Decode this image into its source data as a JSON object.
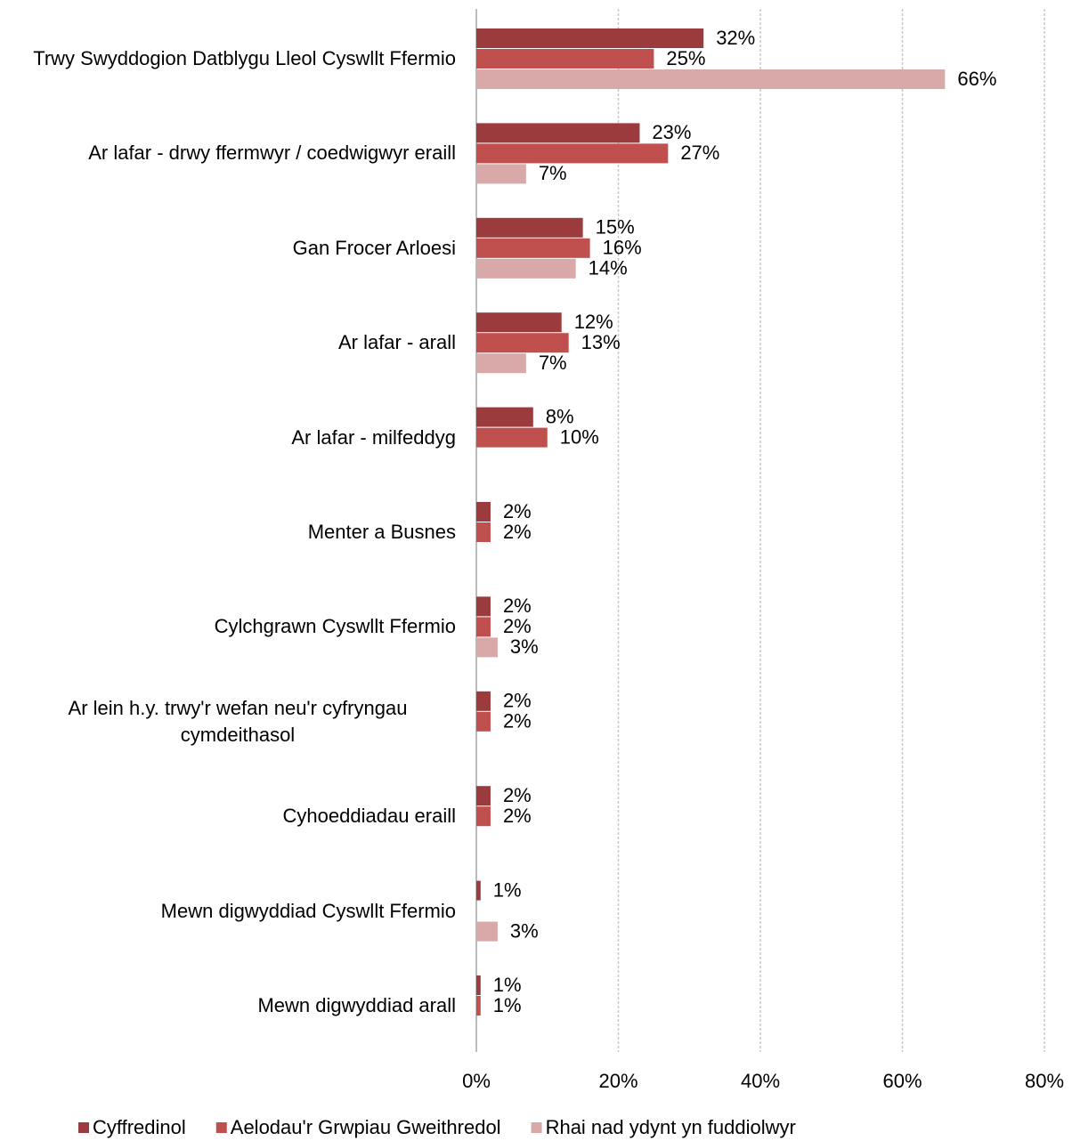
{
  "chart_data": {
    "type": "barh",
    "categories": [
      "Trwy Swyddogion Datblygu Lleol Cyswllt Ffermio",
      "Ar lafar - drwy ffermwyr / coedwigwyr eraill",
      "Gan Frocer Arloesi",
      "Ar lafar - arall",
      "Ar lafar - milfeddyg",
      "Menter a Busnes",
      "Cylchgrawn Cyswllt Ffermio",
      "Ar lein h.y. trwy'r wefan neu'r cyfryngau cymdeithasol",
      "Cyhoeddiadau eraill",
      "Mewn digwyddiad Cyswllt Ffermio",
      "Mewn digwyddiad arall"
    ],
    "series": [
      {
        "name": "Cyffredinol",
        "color": "#9c3b3d",
        "values": [
          32,
          23,
          15,
          12,
          8,
          2,
          2,
          2,
          2,
          0.6,
          0.6
        ],
        "value_labels": [
          "32%",
          "23%",
          "15%",
          "12%",
          "8%",
          "2%",
          "2%",
          "2%",
          "2%",
          "1%",
          "1%"
        ]
      },
      {
        "name": "Aelodau'r Grwpiau Gweithredol",
        "color": "#c0504d",
        "values": [
          25,
          27,
          16,
          13,
          10,
          2,
          2,
          2,
          2,
          null,
          0.6
        ],
        "value_labels": [
          "25%",
          "27%",
          "16%",
          "13%",
          "10%",
          "2%",
          "2%",
          "2%",
          "2%",
          null,
          "1%"
        ]
      },
      {
        "name": "Rhai nad ydynt yn fuddiolwyr",
        "color": "#d9a9a9",
        "values": [
          66,
          7,
          14,
          7,
          null,
          null,
          3,
          null,
          null,
          3,
          null
        ],
        "value_labels": [
          "66%",
          "7%",
          "14%",
          "7%",
          null,
          null,
          "3%",
          null,
          null,
          "3%",
          null
        ]
      }
    ],
    "xlim": [
      0,
      80
    ],
    "xticks": [
      {
        "value": 0,
        "label": "0%"
      },
      {
        "value": 20,
        "label": "20%"
      },
      {
        "value": 40,
        "label": "40%"
      },
      {
        "value": 60,
        "label": "60%"
      },
      {
        "value": 80,
        "label": "80%"
      }
    ],
    "grid": true,
    "legend": "bottom"
  }
}
